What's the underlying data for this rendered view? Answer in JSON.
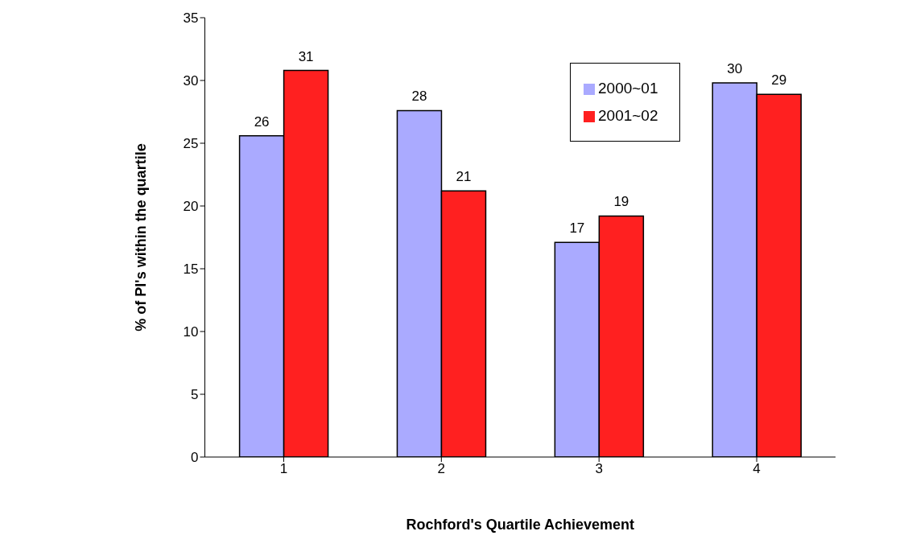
{
  "chart_data": {
    "type": "bar",
    "xlabel": "Rochford's Quartile Achievement",
    "ylabel": "% of PI's within the quartile",
    "categories": [
      "1",
      "2",
      "3",
      "4"
    ],
    "series": [
      {
        "name": "2000~01",
        "color": "#aaaaff",
        "values": [
          25.6,
          27.6,
          17.1,
          29.8
        ],
        "value_labels": [
          "26",
          "28",
          "17",
          "30"
        ]
      },
      {
        "name": "2001~02",
        "color": "#ff2020",
        "values": [
          30.8,
          21.2,
          19.2,
          28.9
        ],
        "value_labels": [
          "31",
          "21",
          "19",
          "29"
        ]
      }
    ],
    "ylim": [
      0,
      35
    ],
    "yticks": [
      0,
      5,
      10,
      15,
      20,
      25,
      30,
      35
    ],
    "grid": false,
    "legend": "top right"
  }
}
